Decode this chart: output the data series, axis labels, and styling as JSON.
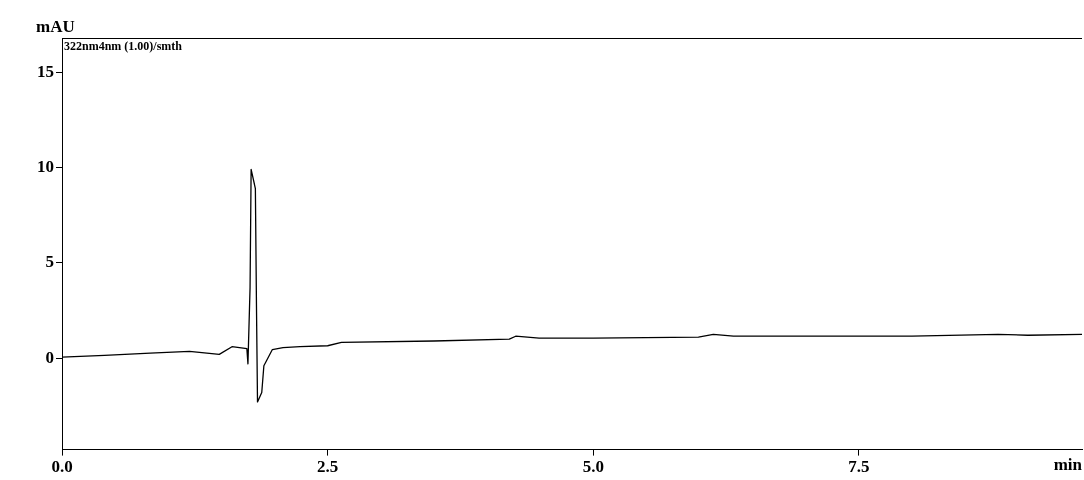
{
  "chart_data": {
    "type": "line",
    "title": "322nm4nm (1.00)/smth",
    "xlabel": "min",
    "ylabel": "mAU",
    "x": [
      0,
      0.4,
      0.83,
      1.2,
      1.48,
      1.6,
      1.74,
      1.75,
      1.77,
      1.78,
      1.82,
      1.83,
      1.84,
      1.88,
      1.9,
      1.98,
      2.08,
      2.24,
      2.5,
      2.63,
      3.5,
      4.21,
      4.27,
      4.49,
      5.0,
      5.99,
      6.13,
      6.32,
      7.0,
      8.0,
      8.81,
      9.09,
      9.6
    ],
    "series": [
      {
        "color": "#000000",
        "values": [
          0.05,
          0.15,
          0.26,
          0.35,
          0.2,
          0.6,
          0.5,
          -0.3,
          3.7,
          9.9,
          8.9,
          2.9,
          -2.3,
          -1.8,
          -0.4,
          0.45,
          0.55,
          0.6,
          0.65,
          0.83,
          0.9,
          1.0,
          1.15,
          1.05,
          1.05,
          1.1,
          1.25,
          1.15,
          1.15,
          1.15,
          1.25,
          1.2,
          1.25
        ]
      }
    ],
    "xlim": [
      0,
      9.6
    ],
    "ylim": [
      -4.8,
      16.8
    ],
    "xticks": [
      {
        "value": 0,
        "label": "0.0"
      },
      {
        "value": 2.5,
        "label": "2.5"
      },
      {
        "value": 5,
        "label": "5.0"
      },
      {
        "value": 7.5,
        "label": "7.5"
      }
    ],
    "yticks": [
      0,
      5,
      10,
      15
    ],
    "grid": false,
    "legend": false,
    "marker": "none",
    "line_style": "solid"
  }
}
